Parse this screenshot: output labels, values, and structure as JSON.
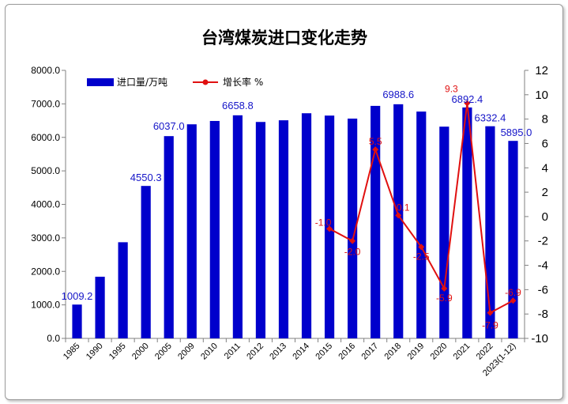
{
  "chart_data": {
    "type": "bar+line",
    "title": "台湾煤炭进口变化走势",
    "categories": [
      "1985",
      "1990",
      "1995",
      "2000",
      "2005",
      "2009",
      "2010",
      "2011",
      "2012",
      "2013",
      "2014",
      "2015",
      "2016",
      "2017",
      "2018",
      "2019",
      "2020",
      "2021",
      "2022",
      "2023(1-12)"
    ],
    "series": [
      {
        "name": "进口量/万吨",
        "type": "bar",
        "axis": "left",
        "color": "#0000cc",
        "values": [
          1009.2,
          1840,
          2870,
          4550.3,
          6037.0,
          6390,
          6490,
          6658.8,
          6460,
          6510,
          6720,
          6650,
          6560,
          6940,
          6988.6,
          6770,
          6320,
          6892.4,
          6332.4,
          5895.0
        ],
        "labels": {
          "0": "1009.2",
          "3": "4550.3",
          "4": "6037.0",
          "7": "6658.8",
          "14": "6988.6",
          "17": "6892.4",
          "18": "6332.4",
          "19": "5895.0"
        }
      },
      {
        "name": "增长率 %",
        "type": "line",
        "axis": "right",
        "color": "#e01010",
        "values": [
          null,
          null,
          null,
          null,
          null,
          null,
          null,
          null,
          null,
          null,
          null,
          -1.0,
          -2.0,
          5.5,
          0.1,
          -2.5,
          -5.9,
          9.3,
          -7.9,
          -6.9
        ],
        "labels": {
          "11": "-1.0",
          "12": "-2.0",
          "13": "5.5",
          "14": "0.1",
          "15": "-2.5",
          "16": "-5.9",
          "17": "9.3",
          "18": "-7.9",
          "19": "-6.9"
        }
      }
    ],
    "y_left": {
      "min": 0,
      "max": 8000,
      "step": 1000,
      "tick_labels": [
        "0.0",
        "1000.0",
        "2000.0",
        "3000.0",
        "4000.0",
        "5000.0",
        "6000.0",
        "7000.0",
        "8000.0"
      ]
    },
    "y_right": {
      "min": -10,
      "max": 12,
      "step": 2,
      "tick_labels": [
        "-10",
        "-8",
        "-6",
        "-4",
        "-2",
        "0",
        "2",
        "4",
        "6",
        "8",
        "10",
        "12"
      ]
    },
    "grid": false,
    "legend_position": "top-left"
  }
}
